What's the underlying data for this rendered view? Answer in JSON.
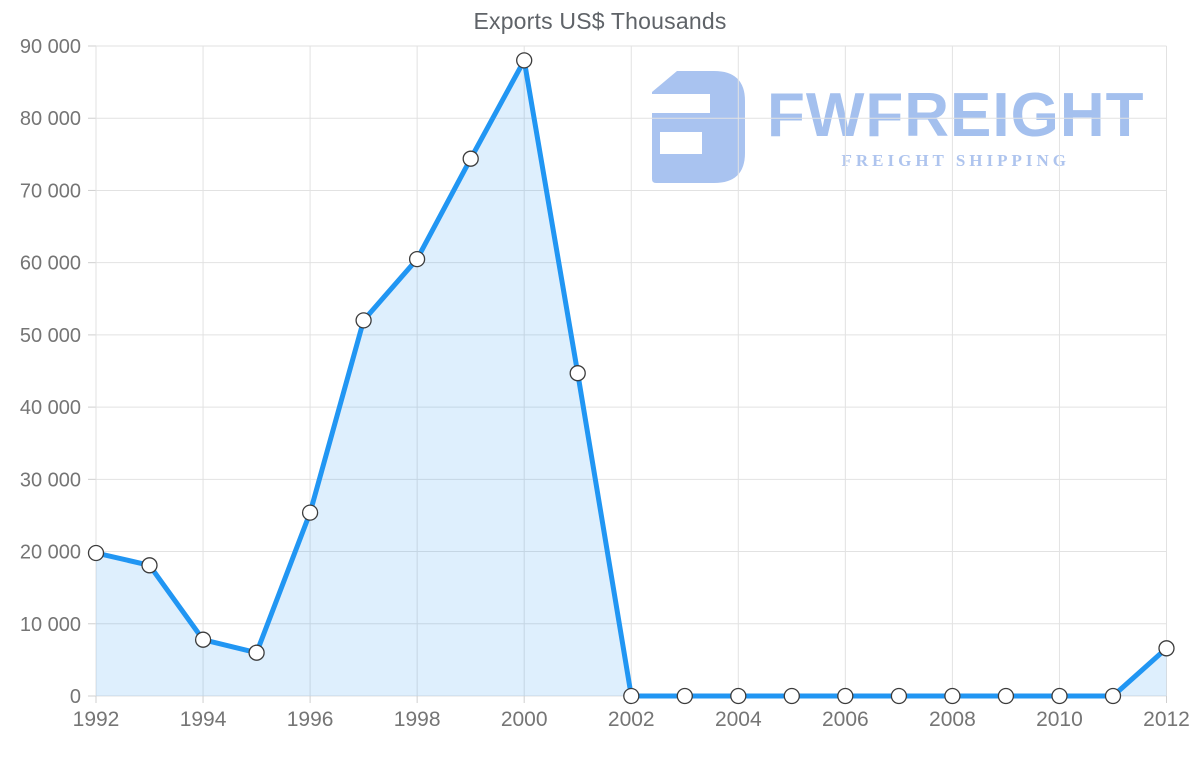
{
  "chart_data": {
    "type": "area",
    "title": "Exports US$ Thousands",
    "x": [
      1992,
      1993,
      1994,
      1995,
      1996,
      1997,
      1998,
      1999,
      2000,
      2001,
      2002,
      2003,
      2004,
      2005,
      2006,
      2007,
      2008,
      2009,
      2010,
      2011,
      2012
    ],
    "series": [
      {
        "name": "Exports US$ Thousands",
        "values": [
          19800,
          18100,
          7800,
          6000,
          25400,
          52000,
          60500,
          74400,
          88000,
          44700,
          0,
          0,
          0,
          0,
          0,
          0,
          0,
          0,
          0,
          0,
          6600
        ]
      }
    ],
    "xlim": [
      1992,
      2012
    ],
    "ylim": [
      0,
      90000
    ],
    "x_ticks": [
      1992,
      1994,
      1996,
      1998,
      2000,
      2002,
      2004,
      2006,
      2008,
      2010,
      2012
    ],
    "x_tick_labels": [
      "1992",
      "1994",
      "1996",
      "1998",
      "2000",
      "2002",
      "2004",
      "2006",
      "2008",
      "2010",
      "2012"
    ],
    "y_ticks": [
      0,
      10000,
      20000,
      30000,
      40000,
      50000,
      60000,
      70000,
      80000,
      90000
    ],
    "y_tick_labels": [
      "0",
      "10 000",
      "20 000",
      "30 000",
      "40 000",
      "50 000",
      "60 000",
      "70 000",
      "80 000",
      "90 000"
    ],
    "grid": true,
    "legend_position": "none",
    "marker": "circle",
    "colors": {
      "line": "#2196f3",
      "fill": "rgba(33,150,243,0.15)",
      "marker_fill": "#ffffff",
      "marker_stroke": "#3c3c3c",
      "grid": "#e2e2e2",
      "tick": "#cfcfcf",
      "tick_label": "#757575",
      "title": "#5f6368"
    }
  },
  "watermark": {
    "wordmark": "FWFREIGHT",
    "tagline": "FREIGHT SHIPPING",
    "logo_icon": "fwfreight-monogram",
    "color": "#a6c1ef"
  }
}
